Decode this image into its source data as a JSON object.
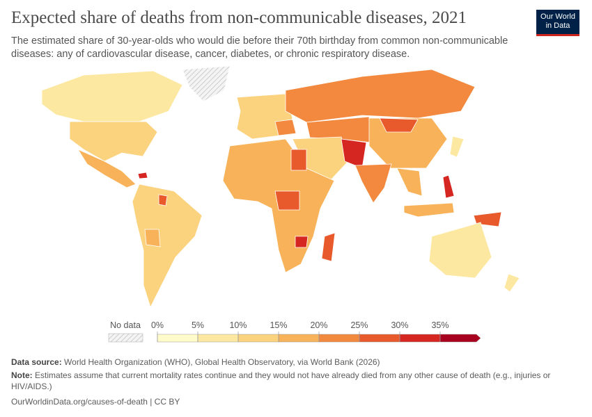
{
  "header": {
    "title": "Expected share of deaths from non-communicable diseases, 2021",
    "subtitle": "The estimated share of 30-year-olds who would die before their 70th birthday from common non-communicable diseases: any of cardiovascular disease, cancer, diabetes, or chronic respiratory disease.",
    "logo": [
      "Our World",
      "in Data"
    ]
  },
  "legend": {
    "no_data": "No data",
    "ticks": [
      {
        "value": 0,
        "label": "0%"
      },
      {
        "value": 5,
        "label": "5%"
      },
      {
        "value": 10,
        "label": "10%"
      },
      {
        "value": 15,
        "label": "15%"
      },
      {
        "value": 20,
        "label": "20%"
      },
      {
        "value": 25,
        "label": "25%"
      },
      {
        "value": 30,
        "label": "30%"
      },
      {
        "value": 35,
        "label": "35%"
      }
    ],
    "colors": [
      "#fffbcb",
      "#fde8a2",
      "#fbd27e",
      "#f8b35a",
      "#f3893e",
      "#e85a2c",
      "#d52622",
      "#a8001f"
    ]
  },
  "footer": {
    "source_label": "Data source:",
    "source": "World Health Organization (WHO), Global Health Observatory, via World Bank (2026)",
    "note_label": "Note:",
    "note": "Estimates assume that current mortality rates continue and they would not have already died from any other cause of death (e.g., injuries or HIV/AIDS.)",
    "url": "OurWorldinData.org/causes-of-death | CC BY"
  }
}
